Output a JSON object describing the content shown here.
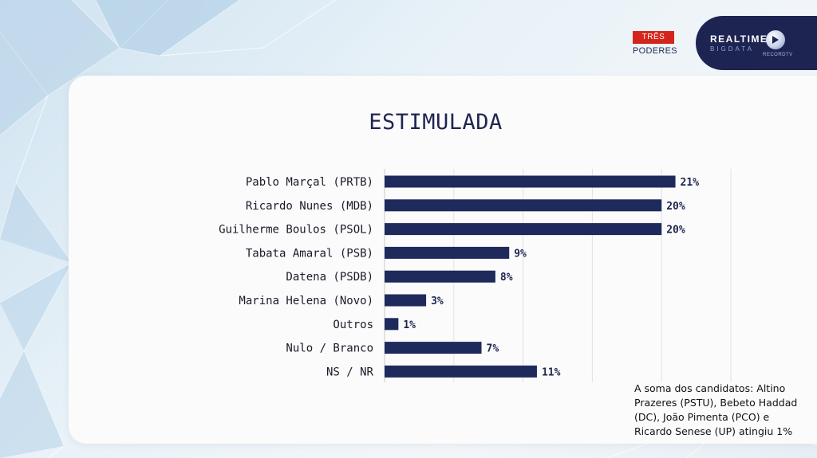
{
  "branding": {
    "tres_poderes_top": "TRÊS",
    "tres_poderes_bottom": "PODERES",
    "realtime_line1": "REALTIME",
    "realtime_line2": "BIGDATA",
    "realtime_line3": "RECORDTV"
  },
  "chart_data": {
    "type": "bar",
    "orientation": "horizontal",
    "title": "ESTIMULADA",
    "categories": [
      "Pablo Marçal (PRTB)",
      "Ricardo Nunes (MDB)",
      "Guilherme Boulos (PSOL)",
      "Tabata Amaral (PSB)",
      "Datena (PSDB)",
      "Marina Helena (Novo)",
      "Outros",
      "Nulo / Branco",
      "NS / NR"
    ],
    "values": [
      21,
      20,
      20,
      9,
      8,
      3,
      1,
      7,
      11
    ],
    "value_labels": [
      "21%",
      "20%",
      "20%",
      "9%",
      "8%",
      "3%",
      "1%",
      "7%",
      "11%"
    ],
    "xlim": [
      0,
      25
    ],
    "grid": true,
    "bar_color": "#1f2a5c"
  },
  "note": "A soma dos candidatos: Altino Prazeres (PSTU), Bebeto Haddad (DC), João Pimenta (PCO) e Ricardo Senese (UP) atingiu 1%"
}
